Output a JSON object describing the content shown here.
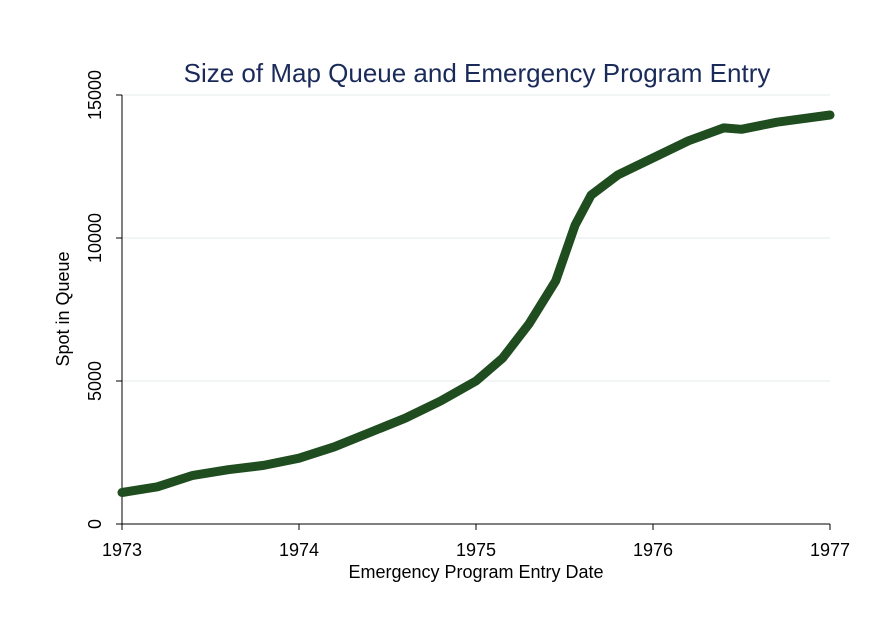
{
  "chart_data": {
    "type": "line",
    "title": "Size of Map Queue and Emergency Program Entry",
    "x_label": "Emergency Program Entry Date",
    "y_label": "Spot in Queue",
    "x": [
      1973.0,
      1973.2,
      1973.4,
      1973.6,
      1973.8,
      1974.0,
      1974.2,
      1974.4,
      1974.6,
      1974.8,
      1975.0,
      1975.15,
      1975.3,
      1975.45,
      1975.56,
      1975.65,
      1975.8,
      1976.0,
      1976.2,
      1976.4,
      1976.5,
      1976.7,
      1977.0
    ],
    "series": [
      {
        "name": "Spot in Queue",
        "color": "#1f4d1f",
        "values": [
          1100,
          1300,
          1700,
          1900,
          2050,
          2300,
          2700,
          3200,
          3700,
          4300,
          5000,
          5800,
          7000,
          8500,
          10450,
          11500,
          12200,
          12800,
          13400,
          13850,
          13800,
          14050,
          14300
        ]
      }
    ],
    "xlim": [
      1973,
      1977
    ],
    "xticks": [
      1973,
      1974,
      1975,
      1976,
      1977
    ],
    "ylim": [
      0,
      15000
    ],
    "yticks": [
      0,
      5000,
      10000,
      15000
    ],
    "grid": true
  }
}
